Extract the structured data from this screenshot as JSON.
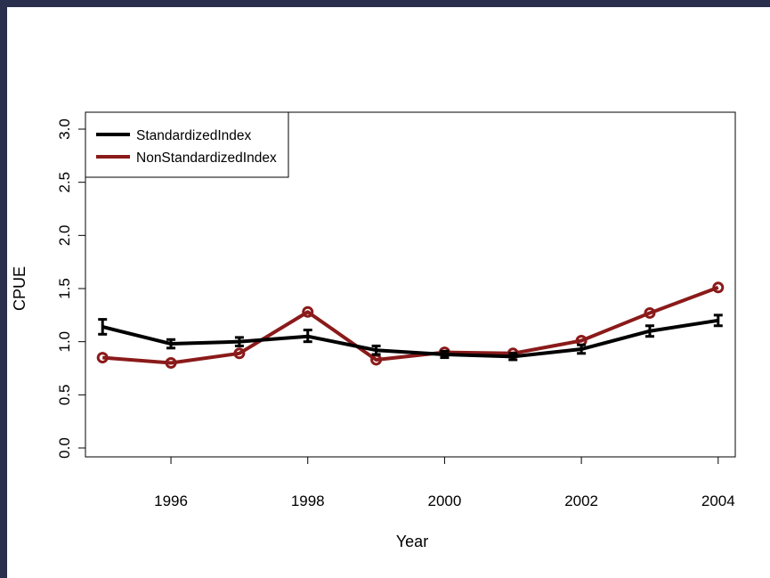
{
  "chart_data": {
    "type": "line",
    "title": "",
    "xlabel": "Year",
    "ylabel": "CPUE",
    "x": [
      1995,
      1996,
      1997,
      1998,
      1999,
      2000,
      2001,
      2002,
      2003,
      2004
    ],
    "xlim": [
      1994.75,
      2004.25
    ],
    "ylim": [
      0,
      3
    ],
    "x_ticks": [
      1996,
      1998,
      2000,
      2002,
      2004
    ],
    "x_tick_labels": [
      "1996",
      "1998",
      "2000",
      "2002",
      "2004"
    ],
    "y_ticks": [
      0,
      0.5,
      1,
      1.5,
      2,
      2.5,
      3
    ],
    "y_tick_labels": [
      "0.0",
      "0.5",
      "1.0",
      "1.5",
      "2.0",
      "2.5",
      "3.0"
    ],
    "grid": false,
    "legend_position": "top-left",
    "series": [
      {
        "name": "StandardizedIndex",
        "color": "#000000",
        "values": [
          1.14,
          0.98,
          1.0,
          1.05,
          0.92,
          0.88,
          0.86,
          0.93,
          1.1,
          1.2
        ],
        "error_low": [
          1.07,
          0.94,
          0.96,
          1.0,
          0.88,
          0.85,
          0.83,
          0.89,
          1.05,
          1.15
        ],
        "error_high": [
          1.21,
          1.02,
          1.04,
          1.11,
          0.96,
          0.91,
          0.89,
          0.97,
          1.15,
          1.25
        ]
      },
      {
        "name": "NonStandardizedIndex",
        "color": "#8b1a1a",
        "values": [
          0.85,
          0.8,
          0.89,
          1.28,
          0.83,
          0.9,
          0.89,
          1.01,
          1.27,
          1.51
        ]
      }
    ]
  }
}
